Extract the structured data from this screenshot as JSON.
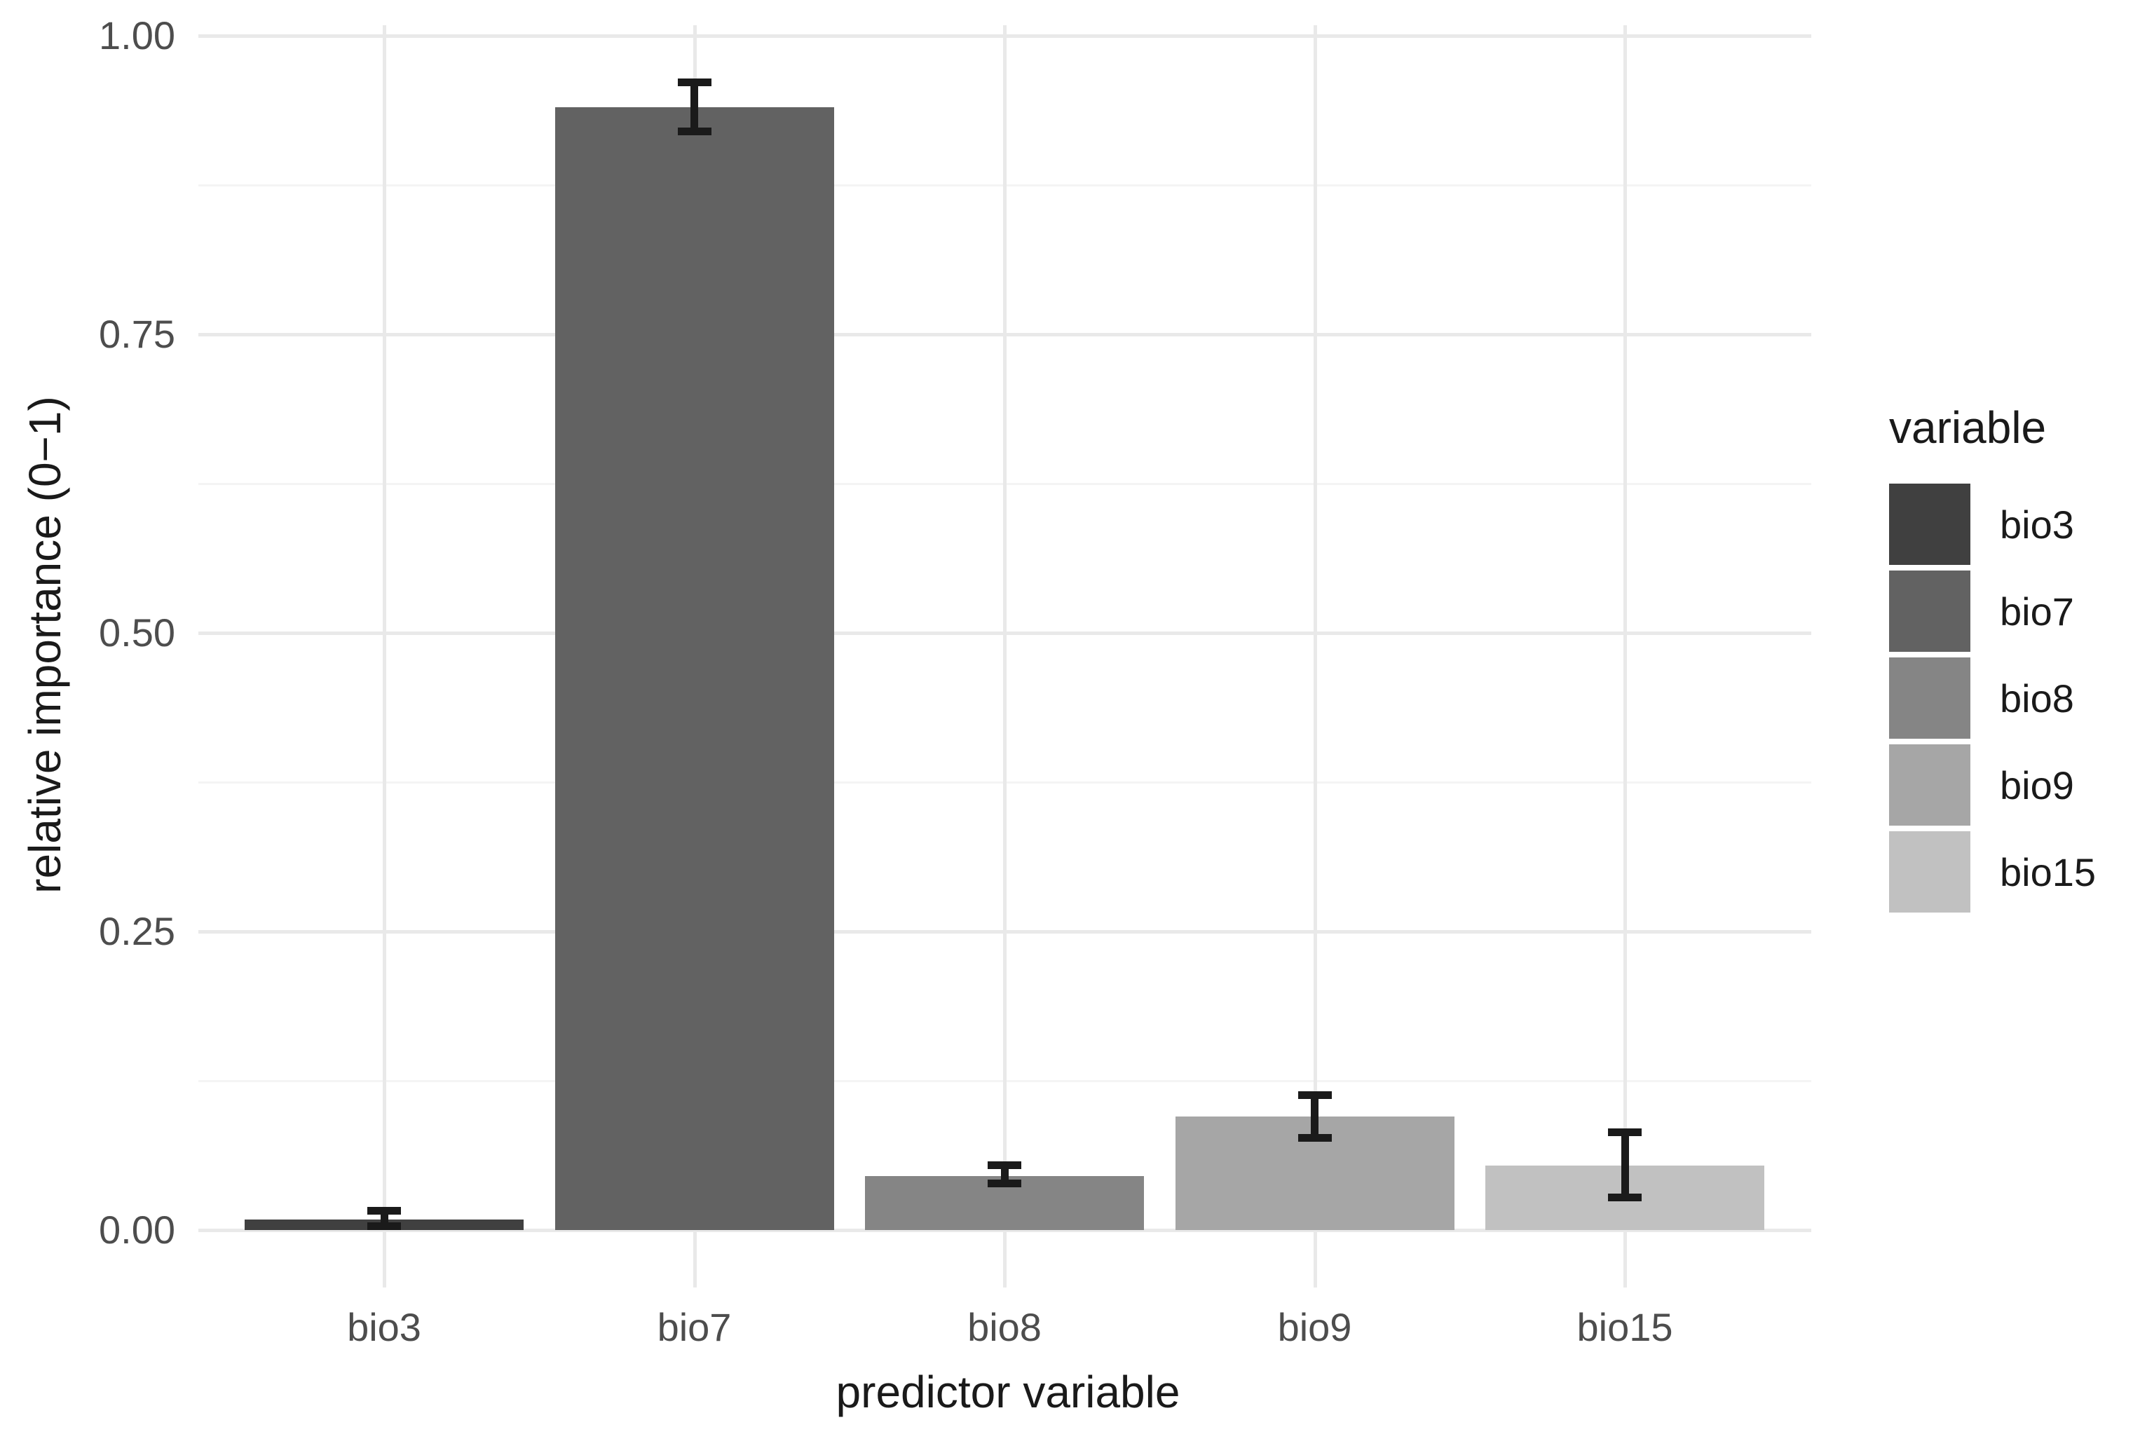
{
  "chart_data": {
    "type": "bar",
    "title": "",
    "xlabel": "predictor variable",
    "ylabel": "relative importance (0−1)",
    "categories": [
      "bio3",
      "bio7",
      "bio8",
      "bio9",
      "bio15"
    ],
    "values": [
      0.009,
      0.94,
      0.045,
      0.095,
      0.054
    ],
    "error_bars": {
      "ymin": [
        0.003,
        0.92,
        0.039,
        0.077,
        0.027
      ],
      "ymax": [
        0.016,
        0.961,
        0.054,
        0.113,
        0.082
      ]
    },
    "bar_colors": [
      "#404040",
      "#626262",
      "#858585",
      "#a6a6a6",
      "#c1c1c1"
    ],
    "ylim": [
      0,
      1
    ],
    "ytick_labels": [
      "0.00",
      "0.25",
      "0.50",
      "0.75",
      "1.00"
    ],
    "ytick_values": [
      0,
      0.25,
      0.5,
      0.75,
      1
    ],
    "yminor_values": [
      0.125,
      0.375,
      0.625,
      0.875
    ],
    "grid": {
      "horizontal_major": true,
      "horizontal_minor": true,
      "vertical_major_at_categories": true,
      "background": "white"
    },
    "legend": {
      "title": "variable",
      "position": "right",
      "entries": [
        {
          "label": "bio3",
          "color": "#404040"
        },
        {
          "label": "bio7",
          "color": "#626262"
        },
        {
          "label": "bio8",
          "color": "#858585"
        },
        {
          "label": "bio9",
          "color": "#a6a6a6"
        },
        {
          "label": "bio15",
          "color": "#c1c1c1"
        }
      ]
    },
    "colors": {
      "axis_text": "#4d4d4d",
      "axis_title": "#1a1a1a",
      "grid_major": "#e9e9e9",
      "grid_minor": "#f4f4f4",
      "error_bar": "#1a1a1a",
      "background": "#ffffff"
    }
  }
}
